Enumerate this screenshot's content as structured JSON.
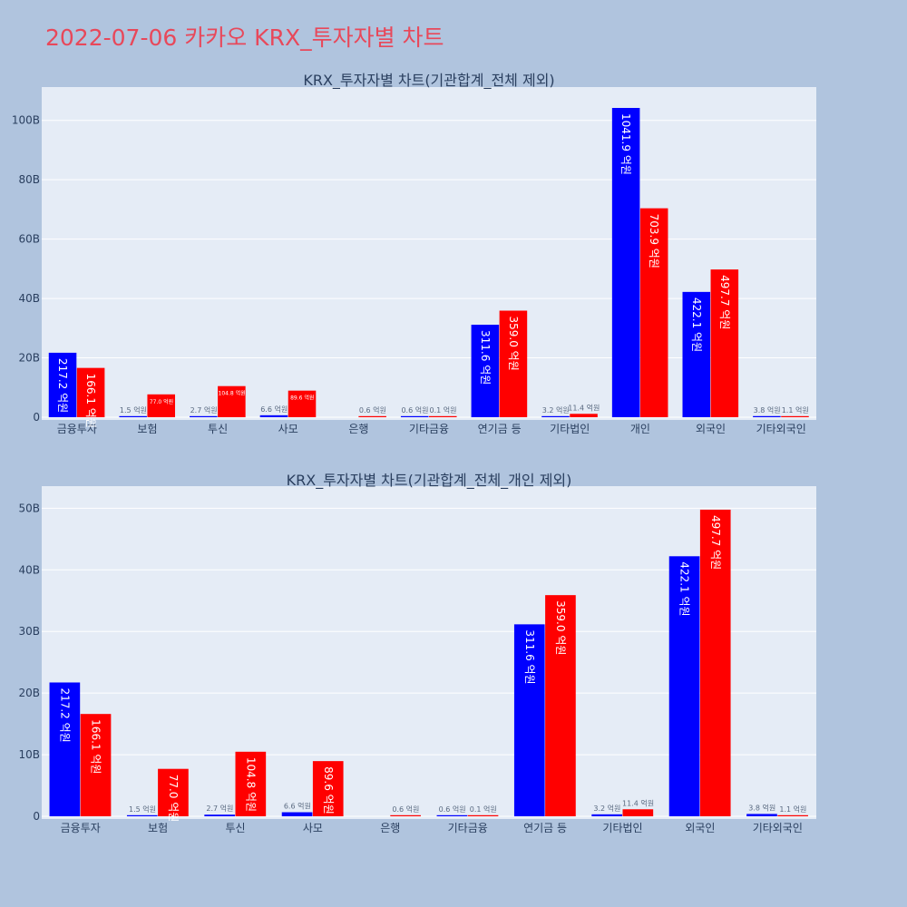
{
  "title": "2022-07-06 카카오 KRX_투자자별 차트",
  "colors": {
    "buy": "#0000ff",
    "sell": "#ff0000",
    "plot_bg": "#e5ecf6",
    "page_bg": "#b0c4de",
    "title": "#e8485a"
  },
  "chart_data": [
    {
      "type": "bar",
      "title": "KRX_투자자별 차트(기관합계_전체 제외)",
      "categories": [
        "금융투자",
        "보험",
        "투신",
        "사모",
        "은행",
        "기타금융",
        "연기금 등",
        "기타법인",
        "개인",
        "외국인",
        "기타외국인"
      ],
      "ylim": [
        0,
        110
      ],
      "yticks": [
        0,
        20,
        40,
        60,
        80,
        100
      ],
      "ytick_labels": [
        "0",
        "20B",
        "40B",
        "60B",
        "80B",
        "100B"
      ],
      "grid": true,
      "legend": "none",
      "series": [
        {
          "color": "#0000ff",
          "values": [
            21.72,
            0.15,
            0.27,
            0.66,
            0,
            0.06,
            31.16,
            0.32,
            104.19,
            42.21,
            0.38
          ],
          "labels": [
            "217.2 억원",
            "1.5 억원",
            "2.7 억원",
            "6.6 억원",
            "",
            "0.6 억원",
            "311.6 억원",
            "3.2 억원",
            "1041.9 억원",
            "422.1 억원",
            "3.8 억원"
          ]
        },
        {
          "color": "#ff0000",
          "values": [
            16.61,
            7.7,
            10.48,
            8.96,
            0.06,
            0.01,
            35.9,
            1.14,
            70.39,
            49.77,
            0.11
          ],
          "labels": [
            "166.1 억원",
            "77.0 억원",
            "104.8 억원",
            "89.6 억원",
            "0.6 억원",
            "0.1 억원",
            "359.0 억원",
            "11.4 억원",
            "703.9 억원",
            "497.7 억원",
            "1.1 억원"
          ]
        }
      ]
    },
    {
      "type": "bar",
      "title": "KRX_투자자별 차트(기관합계_전체_개인 제외)",
      "categories": [
        "금융투자",
        "보험",
        "투신",
        "사모",
        "은행",
        "기타금융",
        "연기금 등",
        "기타법인",
        "외국인",
        "기타외국인"
      ],
      "ylim": [
        0,
        53
      ],
      "yticks": [
        0,
        10,
        20,
        30,
        40,
        50
      ],
      "ytick_labels": [
        "0",
        "10B",
        "20B",
        "30B",
        "40B",
        "50B"
      ],
      "grid": true,
      "legend": "none",
      "series": [
        {
          "color": "#0000ff",
          "values": [
            21.72,
            0.15,
            0.27,
            0.66,
            0,
            0.06,
            31.16,
            0.32,
            42.21,
            0.38
          ],
          "labels": [
            "217.2 억원",
            "1.5 억원",
            "2.7 억원",
            "6.6 억원",
            "",
            "0.6 억원",
            "311.6 억원",
            "3.2 억원",
            "422.1 억원",
            "3.8 억원"
          ]
        },
        {
          "color": "#ff0000",
          "values": [
            16.61,
            7.7,
            10.48,
            8.96,
            0.06,
            0.01,
            35.9,
            1.14,
            49.77,
            0.11
          ],
          "labels": [
            "166.1 억원",
            "77.0 억원",
            "104.8 억원",
            "89.6 억원",
            "0.6 억원",
            "0.1 억원",
            "359.0 억원",
            "11.4 억원",
            "497.7 억원",
            "1.1 억원"
          ]
        }
      ]
    }
  ]
}
